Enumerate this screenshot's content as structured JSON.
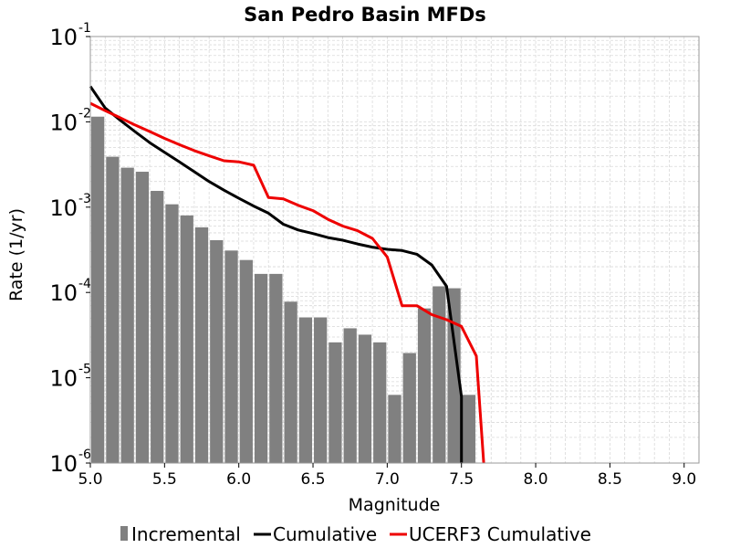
{
  "chart_data": {
    "type": "bar",
    "title": "San Pedro Basin MFDs",
    "xlabel": "Magnitude",
    "ylabel": "Rate (1/yr)",
    "yscale": "log",
    "xlim": [
      5.0,
      9.1
    ],
    "ylim": [
      1e-06,
      0.1
    ],
    "xticks": [
      "5.0",
      "5.5",
      "6.0",
      "6.5",
      "7.0",
      "7.5",
      "8.0",
      "8.5",
      "9.0"
    ],
    "yticks": [
      {
        "base": "10",
        "exp": "-1"
      },
      {
        "base": "10",
        "exp": "-2"
      },
      {
        "base": "10",
        "exp": "-3"
      },
      {
        "base": "10",
        "exp": "-4"
      },
      {
        "base": "10",
        "exp": "-5"
      },
      {
        "base": "10",
        "exp": "-6"
      }
    ],
    "grid": true,
    "legend_position": "bottom",
    "series": [
      {
        "name": "Incremental",
        "type": "bar",
        "color": "#808080",
        "x": [
          5.0,
          5.1,
          5.2,
          5.3,
          5.4,
          5.5,
          5.6,
          5.7,
          5.8,
          5.9,
          6.0,
          6.1,
          6.2,
          6.3,
          6.4,
          6.5,
          6.6,
          6.7,
          6.8,
          6.9,
          7.0,
          7.1,
          7.2,
          7.3,
          7.4,
          7.5
        ],
        "y": [
          0.0115,
          0.0039,
          0.0029,
          0.0026,
          0.00155,
          0.00108,
          0.0008,
          0.00058,
          0.00041,
          0.00031,
          0.00024,
          0.000165,
          0.000165,
          7.8e-05,
          5.1e-05,
          5.1e-05,
          2.6e-05,
          3.8e-05,
          3.2e-05,
          2.6e-05,
          6.3e-06,
          1.95e-05,
          6.5e-05,
          0.000118,
          0.000112,
          6.3e-06
        ]
      },
      {
        "name": "Cumulative",
        "type": "line",
        "color": "#000000",
        "x": [
          5.0,
          5.1,
          5.2,
          5.3,
          5.4,
          5.5,
          5.6,
          5.7,
          5.8,
          5.9,
          6.0,
          6.1,
          6.2,
          6.3,
          6.4,
          6.5,
          6.6,
          6.7,
          6.8,
          6.9,
          7.0,
          7.1,
          7.2,
          7.3,
          7.4,
          7.5,
          7.5
        ],
        "y": [
          0.026,
          0.0145,
          0.0105,
          0.0077,
          0.0057,
          0.0044,
          0.0034,
          0.0026,
          0.002,
          0.00158,
          0.00127,
          0.00103,
          0.00085,
          0.00063,
          0.00054,
          0.00049,
          0.00044,
          0.00041,
          0.00037,
          0.00034,
          0.00032,
          0.00031,
          0.00028,
          0.00021,
          0.000118,
          6e-06,
          1e-06
        ]
      },
      {
        "name": "UCERF3 Cumulative",
        "type": "line",
        "color": "#ee0000",
        "x": [
          5.0,
          5.1,
          5.2,
          5.3,
          5.4,
          5.5,
          5.6,
          5.7,
          5.8,
          5.9,
          6.0,
          6.1,
          6.2,
          6.3,
          6.4,
          6.5,
          6.6,
          6.7,
          6.8,
          6.9,
          7.0,
          7.1,
          7.2,
          7.3,
          7.4,
          7.5,
          7.6,
          7.65
        ],
        "y": [
          0.0165,
          0.0135,
          0.0112,
          0.0092,
          0.0077,
          0.0064,
          0.0054,
          0.0046,
          0.004,
          0.0035,
          0.0034,
          0.0031,
          0.0013,
          0.00125,
          0.00105,
          0.00091,
          0.00072,
          0.0006,
          0.00053,
          0.00043,
          0.00026,
          7e-05,
          7e-05,
          5.5e-05,
          4.8e-05,
          4e-05,
          1.8e-05,
          1e-06
        ]
      }
    ]
  }
}
